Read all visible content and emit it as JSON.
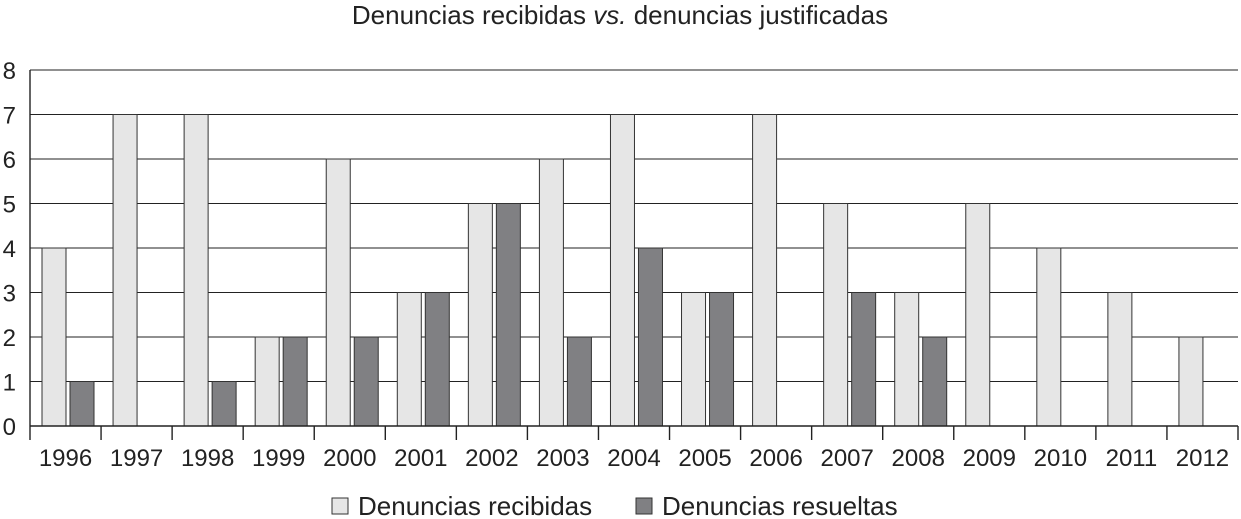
{
  "chart_data": {
    "type": "bar",
    "title_main": "Denuncias recibidas ",
    "title_em": "vs.",
    "title_rest": " denuncias justificadas",
    "categories": [
      "1996",
      "1997",
      "1998",
      "1999",
      "2000",
      "2001",
      "2002",
      "2003",
      "2004",
      "2005",
      "2006",
      "2007",
      "2008",
      "2009",
      "2010",
      "2011",
      "2012"
    ],
    "series": [
      {
        "name": "Denuncias recibidas",
        "values": [
          4,
          7,
          7,
          2,
          6,
          3,
          5,
          6,
          7,
          3,
          7,
          5,
          3,
          5,
          4,
          3,
          2
        ],
        "color": "#e6e6e6"
      },
      {
        "name": "Denuncias resueltas",
        "values": [
          1,
          0,
          1,
          2,
          2,
          3,
          5,
          2,
          4,
          3,
          0,
          3,
          2,
          0,
          0,
          0,
          0
        ],
        "color": "#808083"
      }
    ],
    "ylim": [
      0,
      8
    ],
    "yticks": [
      "0",
      "1",
      "2",
      "3",
      "4",
      "5",
      "6",
      "7",
      "8"
    ],
    "grid": true,
    "legend_position": "bottom-center"
  }
}
